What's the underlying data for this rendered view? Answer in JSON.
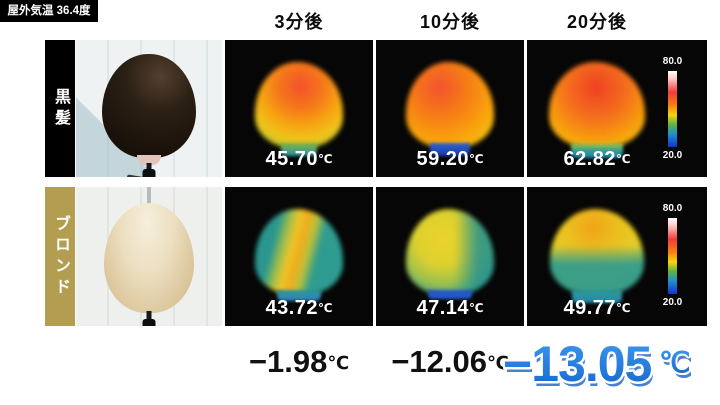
{
  "header": {
    "outdoor_temp": "屋外気温 36.4度",
    "columns": [
      "3分後",
      "10分後",
      "20分後"
    ]
  },
  "rows": [
    {
      "label": "黒髪",
      "temps": [
        "45.70",
        "59.20",
        "62.82"
      ]
    },
    {
      "label": "ブロンド",
      "temps": [
        "43.72",
        "47.14",
        "49.77"
      ]
    }
  ],
  "colorbar": {
    "max": "80.0",
    "min": "20.0"
  },
  "diffs": [
    "−1.98",
    "−12.06",
    "−13.05"
  ],
  "units": {
    "celsius": "℃"
  },
  "colors": {
    "highlight_blue": "#1a7ce2",
    "highlight_shadow_blue": "#4b80cf",
    "blonde_label_gold": "#b29d51",
    "black_label": "#000000"
  }
}
